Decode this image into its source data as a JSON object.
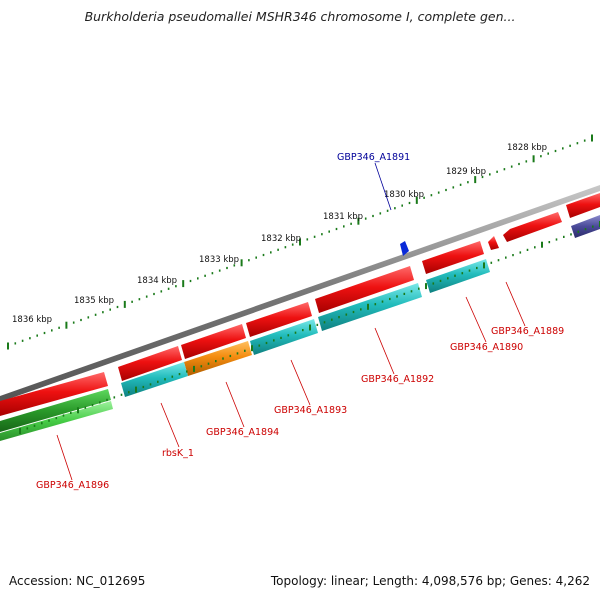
{
  "title": "Burkholderia pseudomallei MSHR346 chromosome I, complete gen...",
  "footer": {
    "accession": "Accession: NC_012695",
    "summary": "Topology: linear; Length: 4,098,576 bp; Genes: 4,262"
  },
  "scale": {
    "tick_color": "#1a7a1a",
    "labels": [
      {
        "text": "1828 kbp",
        "kbp": 1828
      },
      {
        "text": "1829 kbp",
        "kbp": 1829
      },
      {
        "text": "1830 kbp",
        "kbp": 1830
      },
      {
        "text": "1831 kbp",
        "kbp": 1831
      },
      {
        "text": "1832 kbp",
        "kbp": 1832
      },
      {
        "text": "1833 kbp",
        "kbp": 1833
      },
      {
        "text": "1834 kbp",
        "kbp": 1834
      },
      {
        "text": "1835 kbp",
        "kbp": 1835
      },
      {
        "text": "1836 kbp",
        "kbp": 1836
      }
    ]
  },
  "genes": [
    {
      "name": "GBP346_A1889",
      "color": "#e02020"
    },
    {
      "name": "GBP346_A1890",
      "color": "#20b4b4"
    },
    {
      "name": "GBP346_A1891",
      "color": "#0000cc"
    },
    {
      "name": "GBP346_A1892",
      "color": "#20b4b4"
    },
    {
      "name": "GBP346_A1893",
      "color": "#20b4b4"
    },
    {
      "name": "GBP346_A1894",
      "color": "#f08c10"
    },
    {
      "name": "rbsK_1",
      "color": "#20b4b4"
    },
    {
      "name": "GBP346_A1896",
      "color": "#2e9e2e"
    }
  ],
  "colors": {
    "backbone": "#888888",
    "forward_gene": "#e02020",
    "reverse_gene": "#20b4b4",
    "rna_gene": "#2e9e2e",
    "other_gene": "#4a4a99",
    "label_red": "#cc0000",
    "label_blue": "#000099"
  }
}
